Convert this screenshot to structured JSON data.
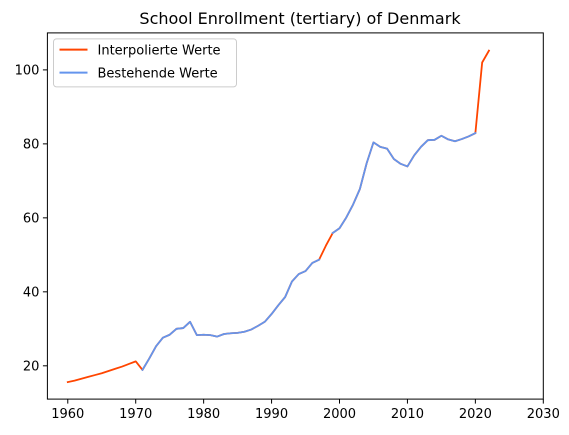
{
  "chart_data": {
    "type": "line",
    "title": "School Enrollment (tertiary) of Denmark",
    "xlabel": "",
    "ylabel": "",
    "xlim": [
      1957,
      2030
    ],
    "ylim": [
      11,
      110
    ],
    "xticks": [
      1960,
      1970,
      1980,
      1990,
      2000,
      2010,
      2020,
      2030
    ],
    "yticks": [
      20,
      40,
      60,
      80,
      100
    ],
    "grid": false,
    "legend_position": "top-left",
    "series": [
      {
        "name": "Interpolierte Werte",
        "color": "#ff4500",
        "points": [
          [
            1960,
            15.6
          ],
          [
            1961,
            16.0
          ],
          [
            1962,
            16.5
          ],
          [
            1963,
            17.0
          ],
          [
            1964,
            17.5
          ],
          [
            1965,
            18.0
          ],
          [
            1966,
            18.6
          ],
          [
            1967,
            19.2
          ],
          [
            1968,
            19.8
          ],
          [
            1969,
            20.5
          ],
          [
            1970,
            21.2
          ],
          [
            1971,
            18.9
          ],
          [
            1972,
            22.0
          ],
          [
            1973,
            25.3
          ],
          [
            1974,
            27.6
          ],
          [
            1975,
            28.4
          ],
          [
            1976,
            30.0
          ],
          [
            1977,
            30.2
          ],
          [
            1978,
            31.9
          ],
          [
            1979,
            28.3
          ],
          [
            1980,
            28.4
          ],
          [
            1981,
            28.3
          ],
          [
            1982,
            27.9
          ],
          [
            1983,
            28.6
          ],
          [
            1984,
            28.8
          ],
          [
            1985,
            28.9
          ],
          [
            1986,
            29.2
          ],
          [
            1987,
            29.8
          ],
          [
            1988,
            30.8
          ],
          [
            1989,
            31.9
          ],
          [
            1990,
            34.0
          ],
          [
            1991,
            36.4
          ],
          [
            1992,
            38.6
          ],
          [
            1993,
            42.8
          ],
          [
            1994,
            44.8
          ],
          [
            1995,
            45.6
          ],
          [
            1996,
            47.8
          ],
          [
            1997,
            48.7
          ],
          [
            1998,
            52.5
          ],
          [
            1999,
            55.9
          ],
          [
            2000,
            57.2
          ],
          [
            2001,
            60.1
          ],
          [
            2002,
            63.6
          ],
          [
            2003,
            67.8
          ],
          [
            2004,
            74.8
          ],
          [
            2005,
            80.4
          ],
          [
            2006,
            79.2
          ],
          [
            2007,
            78.7
          ],
          [
            2008,
            75.9
          ],
          [
            2009,
            74.6
          ],
          [
            2010,
            73.9
          ],
          [
            2011,
            76.9
          ],
          [
            2012,
            79.2
          ],
          [
            2013,
            81.0
          ],
          [
            2014,
            81.1
          ],
          [
            2015,
            82.2
          ],
          [
            2016,
            81.2
          ],
          [
            2017,
            80.7
          ],
          [
            2018,
            81.3
          ],
          [
            2019,
            82.0
          ],
          [
            2020,
            82.9
          ],
          [
            2021,
            102.0
          ],
          [
            2022,
            105.2
          ]
        ]
      },
      {
        "name": "Bestehende Werte",
        "color": "#6495ed",
        "points": [
          [
            1971,
            18.9
          ],
          [
            1972,
            22.0
          ],
          [
            1973,
            25.3
          ],
          [
            1974,
            27.6
          ],
          [
            1975,
            28.4
          ],
          [
            1976,
            30.0
          ],
          [
            1977,
            30.2
          ],
          [
            1978,
            31.9
          ],
          [
            1979,
            28.3
          ],
          [
            1980,
            28.4
          ],
          [
            1981,
            28.3
          ],
          [
            1982,
            27.9
          ],
          [
            1983,
            28.6
          ],
          [
            1984,
            28.8
          ],
          [
            1985,
            28.9
          ],
          [
            1986,
            29.2
          ],
          [
            1987,
            29.8
          ],
          [
            1988,
            30.8
          ],
          [
            1989,
            31.9
          ],
          [
            1990,
            34.0
          ],
          [
            1991,
            36.4
          ],
          [
            1992,
            38.6
          ],
          [
            1993,
            42.8
          ],
          [
            1994,
            44.8
          ],
          [
            1995,
            45.6
          ],
          [
            1996,
            47.8
          ],
          [
            1997,
            48.7
          ],
          null,
          [
            1999,
            55.9
          ],
          [
            2000,
            57.2
          ],
          [
            2001,
            60.1
          ],
          [
            2002,
            63.6
          ],
          [
            2003,
            67.8
          ],
          [
            2004,
            74.8
          ],
          [
            2005,
            80.4
          ],
          [
            2006,
            79.2
          ],
          [
            2007,
            78.7
          ],
          [
            2008,
            75.9
          ],
          [
            2009,
            74.6
          ],
          [
            2010,
            73.9
          ],
          [
            2011,
            76.9
          ],
          [
            2012,
            79.2
          ],
          [
            2013,
            81.0
          ],
          [
            2014,
            81.1
          ],
          [
            2015,
            82.2
          ],
          [
            2016,
            81.2
          ],
          [
            2017,
            80.7
          ],
          [
            2018,
            81.3
          ],
          [
            2019,
            82.0
          ],
          [
            2020,
            82.9
          ]
        ]
      }
    ]
  }
}
